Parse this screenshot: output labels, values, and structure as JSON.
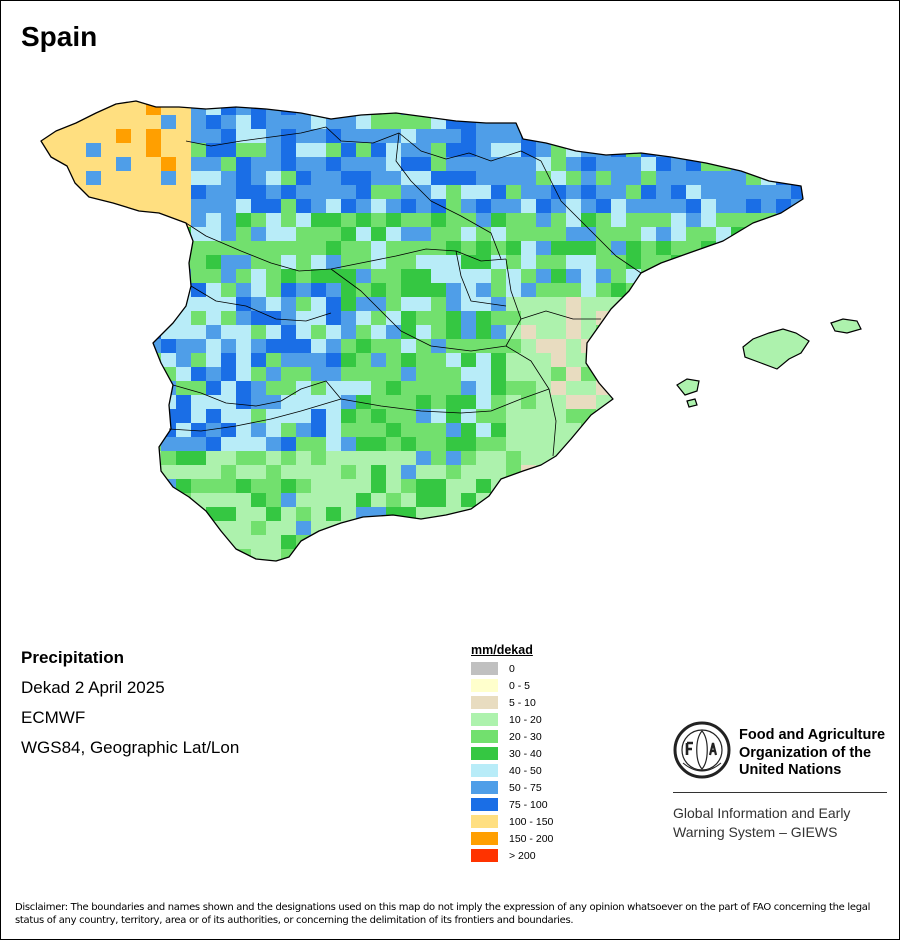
{
  "map": {
    "title": "Spain",
    "variable": "Precipitation",
    "period": "Dekad 2 April 2025",
    "source": "ECMWF",
    "projection": "WGS84, Geographic Lat/Lon",
    "region_colors": {
      "galicia": "#ffdf80",
      "north": "#4f9ee8",
      "plateau": "#72e06e",
      "east": "#adf2ad",
      "south": "#adf2ad"
    }
  },
  "legend": {
    "title": "mm/dekad",
    "items": [
      {
        "label": "0",
        "color": "#c0c0c0"
      },
      {
        "label": "0 - 5",
        "color": "#ffffcc"
      },
      {
        "label": "5 - 10",
        "color": "#e8dcc0"
      },
      {
        "label": "10 - 20",
        "color": "#adf2ad"
      },
      {
        "label": "20 - 30",
        "color": "#72e06e"
      },
      {
        "label": "30 - 40",
        "color": "#35c742"
      },
      {
        "label": "40 - 50",
        "color": "#b8ecf8"
      },
      {
        "label": "50 - 75",
        "color": "#4f9ee8"
      },
      {
        "label": "75 - 100",
        "color": "#1a6ee6"
      },
      {
        "label": "100 - 150",
        "color": "#ffdf80"
      },
      {
        "label": "150 - 200",
        "color": "#ff9f00"
      },
      {
        "label": "> 200",
        "color": "#ff3300"
      }
    ]
  },
  "fao": {
    "name_lines": [
      "Food and Agriculture",
      "Organization of the",
      "United Nations"
    ],
    "logo_text": "FIAT PANIS",
    "giews_lines": [
      "Global Information and Early",
      "Warning System – GIEWS"
    ]
  },
  "disclaimer": "Disclaimer: The boundaries and names shown and the designations used on this map do not imply the expression of any opinion whatsoever on the part of FAO concerning the legal status of any country, territory, area or of its authorities, or concerning the delimitation of its frontiers and boundaries."
}
